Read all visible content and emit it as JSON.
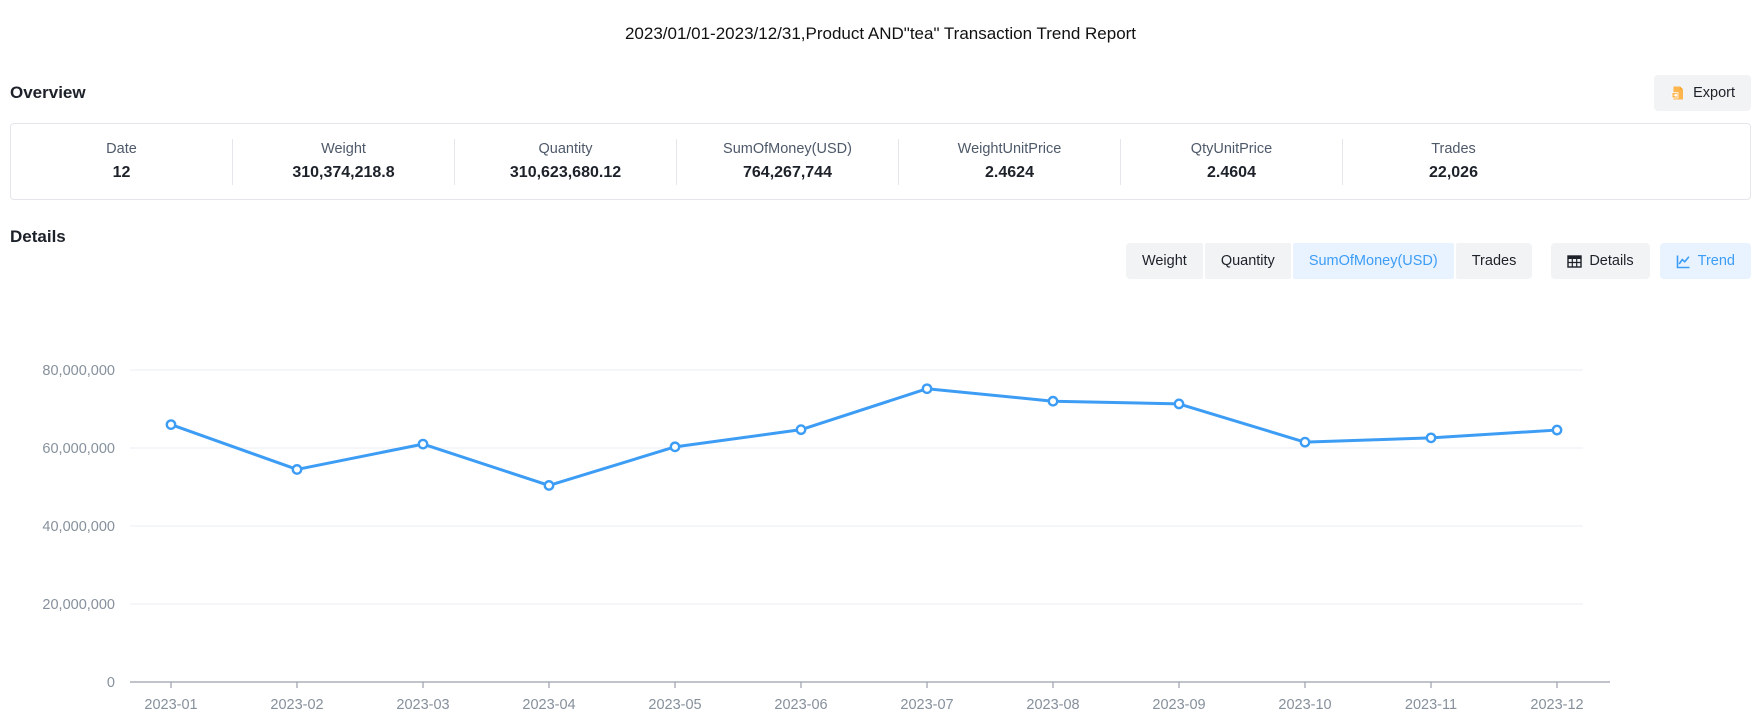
{
  "title": "2023/01/01-2023/12/31,Product AND\"tea\" Transaction Trend Report",
  "overview": {
    "heading": "Overview",
    "export_label": "Export",
    "stats": [
      {
        "label": "Date",
        "value": "12"
      },
      {
        "label": "Weight",
        "value": "310,374,218.8"
      },
      {
        "label": "Quantity",
        "value": "310,623,680.12"
      },
      {
        "label": "SumOfMoney(USD)",
        "value": "764,267,744"
      },
      {
        "label": "WeightUnitPrice",
        "value": "2.4624"
      },
      {
        "label": "QtyUnitPrice",
        "value": "2.4604"
      },
      {
        "label": "Trades",
        "value": "22,026"
      }
    ]
  },
  "details": {
    "heading": "Details",
    "metric_tabs": [
      {
        "label": "Weight",
        "active": false
      },
      {
        "label": "Quantity",
        "active": false
      },
      {
        "label": "SumOfMoney(USD)",
        "active": true
      },
      {
        "label": "Trades",
        "active": false
      }
    ],
    "view_tabs": [
      {
        "label": "Details",
        "icon": "table-icon",
        "active": false
      },
      {
        "label": "Trend",
        "icon": "trend-chart-icon",
        "active": true
      }
    ]
  },
  "colors": {
    "accent": "#3d9df5",
    "accent_bg": "#e8f3ff",
    "button_bg": "#f2f3f5",
    "export_icon_orange": "#ffb54d",
    "grid_line": "#e9edf4",
    "axis_line": "#9aa0aa",
    "axis_text": "#86909c",
    "card_border": "#e5e6eb"
  },
  "chart_data": {
    "type": "line",
    "title": "",
    "xlabel": "",
    "ylabel": "",
    "categories": [
      "2023-01",
      "2023-02",
      "2023-03",
      "2023-04",
      "2023-05",
      "2023-06",
      "2023-07",
      "2023-08",
      "2023-09",
      "2023-10",
      "2023-11",
      "2023-12"
    ],
    "series": [
      {
        "name": "SumOfMoney(USD)",
        "values": [
          66000000,
          54500000,
          61000000,
          50400000,
          60300000,
          64700000,
          75200000,
          72000000,
          71300000,
          61500000,
          62600000,
          64600000
        ]
      }
    ],
    "ylim": [
      0,
      80000000
    ],
    "yticks": [
      0,
      20000000,
      40000000,
      60000000,
      80000000
    ],
    "grid": true,
    "legend": "none",
    "point_style": "hollow-circle"
  }
}
